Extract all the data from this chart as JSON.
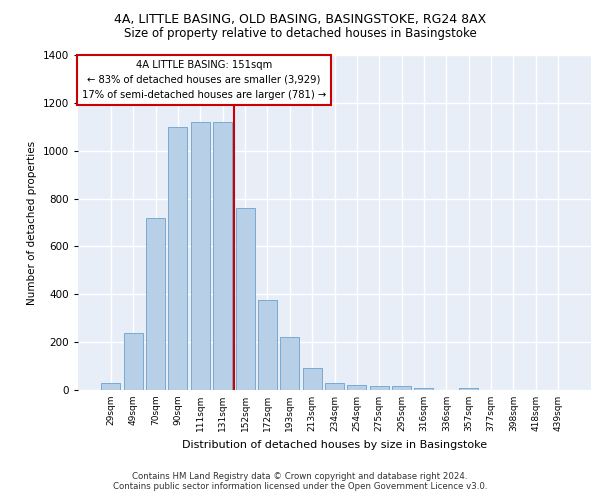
{
  "title1": "4A, LITTLE BASING, OLD BASING, BASINGSTOKE, RG24 8AX",
  "title2": "Size of property relative to detached houses in Basingstoke",
  "xlabel": "Distribution of detached houses by size in Basingstoke",
  "ylabel": "Number of detached properties",
  "categories": [
    "29sqm",
    "49sqm",
    "70sqm",
    "90sqm",
    "111sqm",
    "131sqm",
    "152sqm",
    "172sqm",
    "193sqm",
    "213sqm",
    "234sqm",
    "254sqm",
    "275sqm",
    "295sqm",
    "316sqm",
    "336sqm",
    "357sqm",
    "377sqm",
    "398sqm",
    "418sqm",
    "439sqm"
  ],
  "values": [
    30,
    240,
    720,
    1100,
    1120,
    1120,
    760,
    375,
    220,
    90,
    30,
    20,
    18,
    15,
    10,
    0,
    10,
    0,
    0,
    0,
    0
  ],
  "bar_color": "#b8cfe8",
  "bar_edge_color": "#7aaacf",
  "vline_x": 5.5,
  "vline_color": "#cc0000",
  "annotation_title": "4A LITTLE BASING: 151sqm",
  "annotation_line1": "← 83% of detached houses are smaller (3,929)",
  "annotation_line2": "17% of semi-detached houses are larger (781) →",
  "annotation_box_color": "#cc0000",
  "footer1": "Contains HM Land Registry data © Crown copyright and database right 2024.",
  "footer2": "Contains public sector information licensed under the Open Government Licence v3.0.",
  "ylim": [
    0,
    1400
  ],
  "yticks": [
    0,
    200,
    400,
    600,
    800,
    1000,
    1200,
    1400
  ],
  "background_color": "#e8eef8",
  "grid_color": "#ffffff",
  "fig_background": "#ffffff"
}
